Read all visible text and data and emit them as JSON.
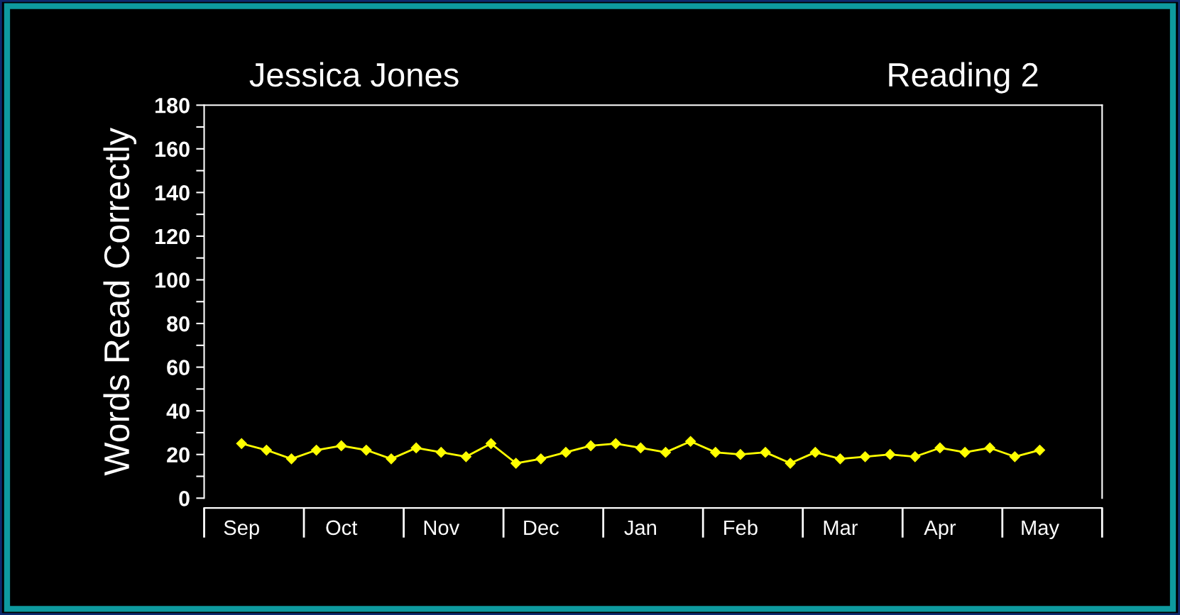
{
  "chart_data": {
    "type": "line",
    "title": "Jessica Jones",
    "subtitle": "Reading 2",
    "ylabel": "Words Read Correctly",
    "categories": [
      "Sep",
      null,
      null,
      null,
      "Oct",
      null,
      null,
      null,
      "Nov",
      null,
      null,
      null,
      "Dec",
      null,
      null,
      null,
      "Jan",
      null,
      null,
      null,
      "Feb",
      null,
      null,
      null,
      "Mar",
      null,
      null,
      null,
      "Apr",
      null,
      null,
      null,
      "May"
    ],
    "series": [
      {
        "color": "#ffff00",
        "values": [
          25,
          22,
          18,
          22,
          24,
          22,
          18,
          23,
          21,
          19,
          25,
          16,
          18,
          21,
          24,
          25,
          23,
          21,
          26,
          21,
          20,
          21,
          16,
          21,
          18,
          19,
          20,
          19,
          23,
          21,
          23,
          19,
          22
        ]
      }
    ],
    "ylim": [
      0,
      180
    ],
    "yticks": [
      0,
      20,
      40,
      60,
      80,
      100,
      120,
      140,
      160,
      180
    ],
    "marker": "diamond",
    "line_style": "solid",
    "grid": false,
    "legend": false
  }
}
